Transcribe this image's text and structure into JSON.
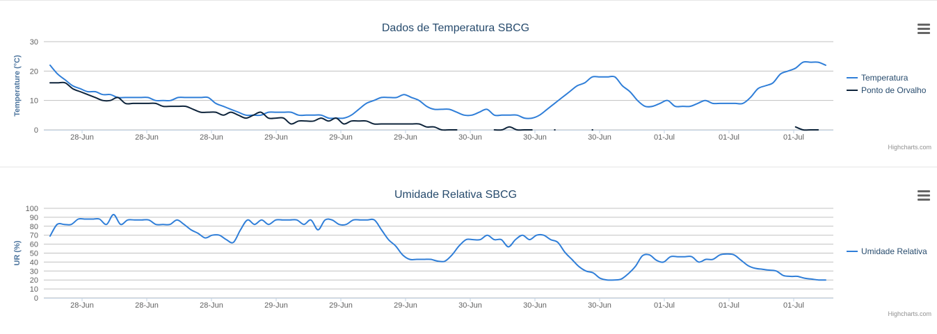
{
  "chart_data": [
    {
      "type": "line",
      "title": "Dados de Temperatura SBCG",
      "ylabel": "Temperature (°C)",
      "ylim": [
        0,
        30
      ],
      "yticks": [
        "0",
        "10",
        "20",
        "30"
      ],
      "xtick_labels": [
        "28-Jun",
        "28-Jun",
        "28-Jun",
        "29-Jun",
        "29-Jun",
        "29-Jun",
        "30-Jun",
        "30-Jun",
        "30-Jun",
        "01-Jul",
        "01-Jul",
        "01-Jul"
      ],
      "grid": true,
      "legend_position": "right",
      "credits": "Highcharts.com",
      "series": [
        {
          "name": "Temperatura",
          "color": "#2f7ed8",
          "values": [
            22,
            19,
            17,
            15,
            14,
            13,
            13,
            12,
            12,
            11,
            11,
            11,
            11,
            11,
            10,
            10,
            10,
            11,
            11,
            11,
            11,
            11,
            9,
            8,
            7,
            6,
            5,
            5,
            5,
            6,
            6,
            6,
            6,
            5,
            5,
            5,
            5,
            4,
            4,
            4,
            5,
            7,
            9,
            10,
            11,
            11,
            11,
            12,
            11,
            10,
            8,
            7,
            7,
            7,
            6,
            5,
            5,
            6,
            7,
            5,
            5,
            5,
            5,
            4,
            4,
            5,
            7,
            9,
            11,
            13,
            15,
            16,
            18,
            18,
            18,
            18,
            15,
            13,
            10,
            8,
            8,
            9,
            10,
            8,
            8,
            8,
            9,
            10,
            9,
            9,
            9,
            9,
            9,
            11,
            14,
            15,
            16,
            19,
            20,
            21,
            23,
            23,
            23,
            22
          ]
        },
        {
          "name": "Ponto de Orvalho",
          "color": "#0d233a",
          "values": [
            16,
            16,
            16,
            14,
            13,
            12,
            11,
            10,
            10,
            11,
            9,
            9,
            9,
            9,
            9,
            8,
            8,
            8,
            8,
            7,
            6,
            6,
            6,
            5,
            6,
            5,
            4,
            5,
            6,
            4,
            4,
            4,
            2,
            3,
            3,
            3,
            4,
            3,
            4,
            2,
            3,
            3,
            3,
            2,
            2,
            2,
            2,
            2,
            2,
            2,
            1,
            1,
            0,
            0,
            0,
            null,
            null,
            null,
            null,
            0,
            0,
            1,
            0,
            0,
            0,
            null,
            null,
            0,
            null,
            null,
            null,
            null,
            0,
            null,
            null,
            null,
            null,
            null,
            null,
            null,
            null,
            null,
            null,
            null,
            null,
            null,
            null,
            null,
            null,
            null,
            null,
            null,
            null,
            null,
            null,
            null,
            null,
            null,
            null,
            1,
            0,
            0,
            0,
            null
          ]
        }
      ]
    },
    {
      "type": "line",
      "title": "Umidade Relativa SBCG",
      "ylabel": "UR (%)",
      "ylim": [
        0,
        100
      ],
      "yticks": [
        "0",
        "10",
        "20",
        "30",
        "40",
        "50",
        "60",
        "70",
        "80",
        "90",
        "100"
      ],
      "xtick_labels": [
        "28-Jun",
        "28-Jun",
        "28-Jun",
        "29-Jun",
        "29-Jun",
        "29-Jun",
        "30-Jun",
        "30-Jun",
        "30-Jun",
        "01-Jul",
        "01-Jul",
        "01-Jul"
      ],
      "grid": true,
      "legend_position": "right",
      "credits": "Highcharts.com",
      "series": [
        {
          "name": "Umidade Relativa",
          "color": "#2f7ed8",
          "values": [
            69,
            82,
            82,
            82,
            88,
            88,
            88,
            88,
            82,
            93,
            82,
            87,
            87,
            87,
            87,
            82,
            82,
            82,
            87,
            82,
            76,
            72,
            67,
            70,
            70,
            65,
            62,
            76,
            87,
            82,
            87,
            82,
            87,
            87,
            87,
            87,
            82,
            87,
            76,
            87,
            87,
            82,
            82,
            87,
            87,
            87,
            87,
            76,
            65,
            58,
            48,
            43,
            43,
            43,
            43,
            41,
            41,
            48,
            58,
            65,
            65,
            65,
            70,
            65,
            65,
            57,
            65,
            70,
            65,
            70,
            70,
            65,
            62,
            51,
            43,
            35,
            30,
            28,
            22,
            20,
            20,
            21,
            27,
            35,
            47,
            48,
            42,
            40,
            46,
            46,
            46,
            46,
            40,
            43,
            43,
            48,
            49,
            48,
            42,
            36,
            33,
            32,
            31,
            30,
            25,
            24,
            24,
            22,
            21,
            20,
            20
          ]
        }
      ]
    }
  ]
}
